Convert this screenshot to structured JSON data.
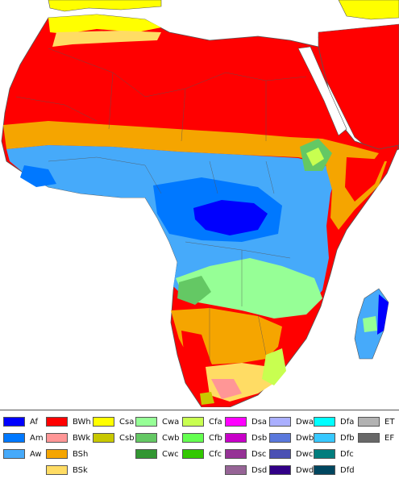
{
  "map": {
    "region": "Africa",
    "ocean_color": "#ffffff",
    "border_color": "#555555"
  },
  "legend": {
    "columns": [
      [
        {
          "code": "Af",
          "color": "#0000fe"
        },
        {
          "code": "Am",
          "color": "#0078ff"
        },
        {
          "code": "Aw",
          "color": "#46aafa"
        }
      ],
      [
        {
          "code": "BWh",
          "color": "#ff0000"
        },
        {
          "code": "BWk",
          "color": "#ff9696"
        },
        {
          "code": "BSh",
          "color": "#f5a500"
        },
        {
          "code": "BSk",
          "color": "#ffdc64"
        }
      ],
      [
        {
          "code": "Csa",
          "color": "#ffff00"
        },
        {
          "code": "Csb",
          "color": "#c8c800"
        }
      ],
      [
        {
          "code": "Cwa",
          "color": "#96ff96"
        },
        {
          "code": "Cwb",
          "color": "#64c864"
        },
        {
          "code": "Cwc",
          "color": "#329632"
        }
      ],
      [
        {
          "code": "Cfa",
          "color": "#c8ff50"
        },
        {
          "code": "Cfb",
          "color": "#64ff50"
        },
        {
          "code": "Cfc",
          "color": "#32c800"
        }
      ],
      [
        {
          "code": "Dsa",
          "color": "#ff00ff"
        },
        {
          "code": "Dsb",
          "color": "#c800c8"
        },
        {
          "code": "Dsc",
          "color": "#963296"
        },
        {
          "code": "Dsd",
          "color": "#966496"
        }
      ],
      [
        {
          "code": "Dwa",
          "color": "#aaafff"
        },
        {
          "code": "Dwb",
          "color": "#5a78dc"
        },
        {
          "code": "Dwc",
          "color": "#4b50b4"
        },
        {
          "code": "Dwd",
          "color": "#320087"
        }
      ],
      [
        {
          "code": "Dfa",
          "color": "#00ffff"
        },
        {
          "code": "Dfb",
          "color": "#37c8ff"
        },
        {
          "code": "Dfc",
          "color": "#007d7d"
        },
        {
          "code": "Dfd",
          "color": "#00465f"
        }
      ],
      [
        {
          "code": "ET",
          "color": "#b2b2b2"
        },
        {
          "code": "EF",
          "color": "#686868"
        }
      ]
    ]
  }
}
